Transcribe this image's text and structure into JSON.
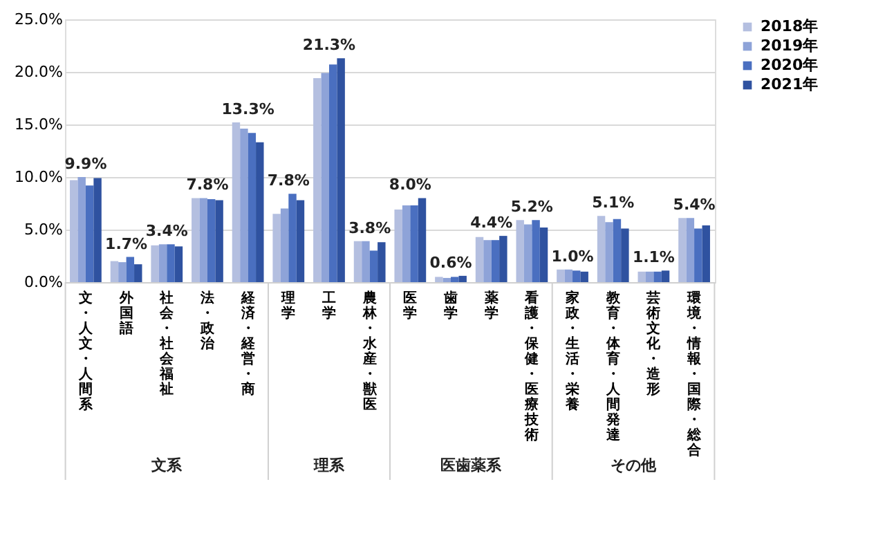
{
  "chart_data": {
    "type": "bar",
    "categories": [
      "文・人文・人間系",
      "外国語",
      "社会・社会福祉",
      "法・政治",
      "経済・経営・商",
      "理学",
      "工学",
      "農林・水産・獣医",
      "医学",
      "歯学",
      "薬学",
      "看護・保健・医療技術",
      "家政・生活・栄養",
      "教育・体育・人間発達",
      "芸術文化・造形",
      "環境・情報・国際・総合"
    ],
    "series": [
      {
        "name": "2018年",
        "color": "#b4bfe0",
        "values": [
          9.7,
          2.0,
          3.5,
          8.0,
          15.2,
          6.5,
          19.4,
          3.9,
          6.9,
          0.5,
          4.3,
          5.9,
          1.2,
          6.3,
          1.0,
          6.1
        ]
      },
      {
        "name": "2019年",
        "color": "#8ea3d8",
        "values": [
          10.0,
          1.9,
          3.6,
          8.0,
          14.6,
          7.0,
          19.9,
          3.9,
          7.3,
          0.4,
          4.0,
          5.5,
          1.2,
          5.7,
          1.0,
          6.1
        ]
      },
      {
        "name": "2020年",
        "color": "#4a6fc0",
        "values": [
          9.2,
          2.4,
          3.6,
          7.9,
          14.2,
          8.4,
          20.7,
          3.0,
          7.3,
          0.5,
          4.0,
          5.9,
          1.1,
          6.0,
          1.0,
          5.1
        ]
      },
      {
        "name": "2021年",
        "color": "#2f52a0",
        "values": [
          9.9,
          1.7,
          3.4,
          7.8,
          13.3,
          7.8,
          21.3,
          3.8,
          8.0,
          0.6,
          4.4,
          5.2,
          1.0,
          5.1,
          1.1,
          5.4
        ],
        "value_labels": [
          "9.9%",
          "1.7%",
          "3.4%",
          "7.8%",
          "13.3%",
          "7.8%",
          "21.3%",
          "3.8%",
          "8.0%",
          "0.6%",
          "4.4%",
          "5.2%",
          "1.0%",
          "5.1%",
          "1.1%",
          "5.4%"
        ]
      }
    ],
    "ylim": [
      0,
      25
    ],
    "yticks": [
      {
        "value": 0,
        "label": "0.0%"
      },
      {
        "value": 5,
        "label": "5.0%"
      },
      {
        "value": 10,
        "label": "10.0%"
      },
      {
        "value": 15,
        "label": "15.0%"
      },
      {
        "value": 20,
        "label": "20.0%"
      },
      {
        "value": 25,
        "label": "25.0%"
      }
    ],
    "grid": "y",
    "legend": "right",
    "annotations": [
      "文系",
      "理系",
      "医歯薬系",
      "その他"
    ]
  }
}
